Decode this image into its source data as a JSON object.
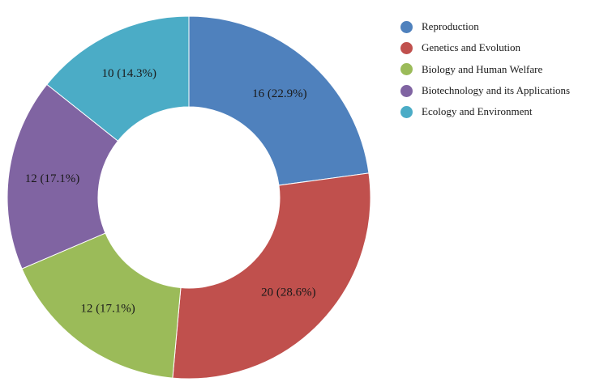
{
  "chart_data": {
    "type": "pie",
    "variant": "donut",
    "categories": [
      "Reproduction",
      "Genetics and Evolution",
      "Biology and Human Welfare",
      "Biotechnology and its Applications",
      "Ecology and Environment"
    ],
    "values": [
      16,
      20,
      12,
      12,
      10
    ],
    "data_labels": [
      "16 (22.9%)",
      "20 (28.6%)",
      "12 (17.1%)",
      "12 (17.1%)",
      "10 (14.3%)"
    ],
    "colors": [
      "#4f81bd",
      "#c0504d",
      "#9bbb59",
      "#8064a2",
      "#4bacc6"
    ],
    "legend_position": "top-right",
    "title": ""
  }
}
